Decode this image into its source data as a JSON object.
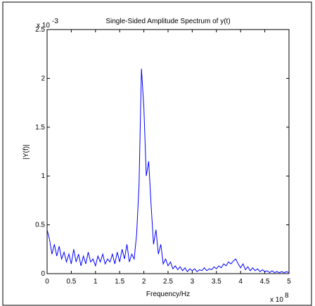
{
  "chart_data": {
    "type": "line",
    "title": "Single-Sided Amplitude Spectrum of y(t)",
    "x_label": "Frequency/Hz",
    "y_label": "|Y(f)|",
    "x_multiplier": {
      "base": "x 10",
      "exponent": "8"
    },
    "y_multiplier": {
      "base": "x 10",
      "exponent": "-3"
    },
    "xlim": [
      0,
      5
    ],
    "ylim": [
      0,
      2.5
    ],
    "xticks": [
      0,
      0.5,
      1,
      1.5,
      2,
      2.5,
      3,
      3.5,
      4,
      4.5,
      5
    ],
    "yticks": [
      0,
      0.5,
      1,
      1.5,
      2,
      2.5
    ],
    "grid": false,
    "series": [
      {
        "color": "#0000ff",
        "x": [
          0,
          0.05,
          0.1,
          0.15,
          0.2,
          0.25,
          0.3,
          0.35,
          0.4,
          0.45,
          0.5,
          0.55,
          0.6,
          0.65,
          0.7,
          0.75,
          0.8,
          0.85,
          0.9,
          0.95,
          1,
          1.05,
          1.1,
          1.15,
          1.2,
          1.25,
          1.3,
          1.35,
          1.4,
          1.45,
          1.5,
          1.55,
          1.6,
          1.65,
          1.7,
          1.75,
          1.8,
          1.85,
          1.9,
          1.95,
          2,
          2.05,
          2.1,
          2.15,
          2.2,
          2.25,
          2.3,
          2.35,
          2.4,
          2.45,
          2.5,
          2.55,
          2.6,
          2.65,
          2.7,
          2.75,
          2.8,
          2.85,
          2.9,
          2.95,
          3,
          3.05,
          3.1,
          3.15,
          3.2,
          3.25,
          3.3,
          3.35,
          3.4,
          3.45,
          3.5,
          3.55,
          3.6,
          3.65,
          3.7,
          3.75,
          3.8,
          3.85,
          3.9,
          3.95,
          4,
          4.05,
          4.1,
          4.15,
          4.2,
          4.25,
          4.3,
          4.35,
          4.4,
          4.45,
          4.5,
          4.55,
          4.6,
          4.65,
          4.7,
          4.75,
          4.8,
          4.85,
          4.9,
          4.95,
          5
        ],
        "values": [
          0.45,
          0.35,
          0.2,
          0.3,
          0.18,
          0.28,
          0.15,
          0.22,
          0.12,
          0.2,
          0.1,
          0.25,
          0.12,
          0.2,
          0.08,
          0.18,
          0.1,
          0.22,
          0.12,
          0.15,
          0.08,
          0.18,
          0.12,
          0.2,
          0.1,
          0.15,
          0.12,
          0.2,
          0.1,
          0.22,
          0.12,
          0.25,
          0.15,
          0.3,
          0.12,
          0.2,
          0.15,
          0.4,
          0.9,
          2.1,
          1.7,
          1.0,
          1.15,
          0.7,
          0.3,
          0.45,
          0.2,
          0.3,
          0.1,
          0.15,
          0.08,
          0.12,
          0.05,
          0.08,
          0.04,
          0.07,
          0.03,
          0.06,
          0.02,
          0.05,
          0.03,
          0.05,
          0.02,
          0.04,
          0.03,
          0.06,
          0.03,
          0.05,
          0.04,
          0.07,
          0.05,
          0.08,
          0.06,
          0.1,
          0.08,
          0.12,
          0.1,
          0.13,
          0.15,
          0.1,
          0.06,
          0.1,
          0.04,
          0.07,
          0.03,
          0.06,
          0.03,
          0.05,
          0.02,
          0.04,
          0.02,
          0.03,
          0.01,
          0.03,
          0.01,
          0.02,
          0.01,
          0.02,
          0.01,
          0.02,
          0.01
        ]
      }
    ]
  }
}
